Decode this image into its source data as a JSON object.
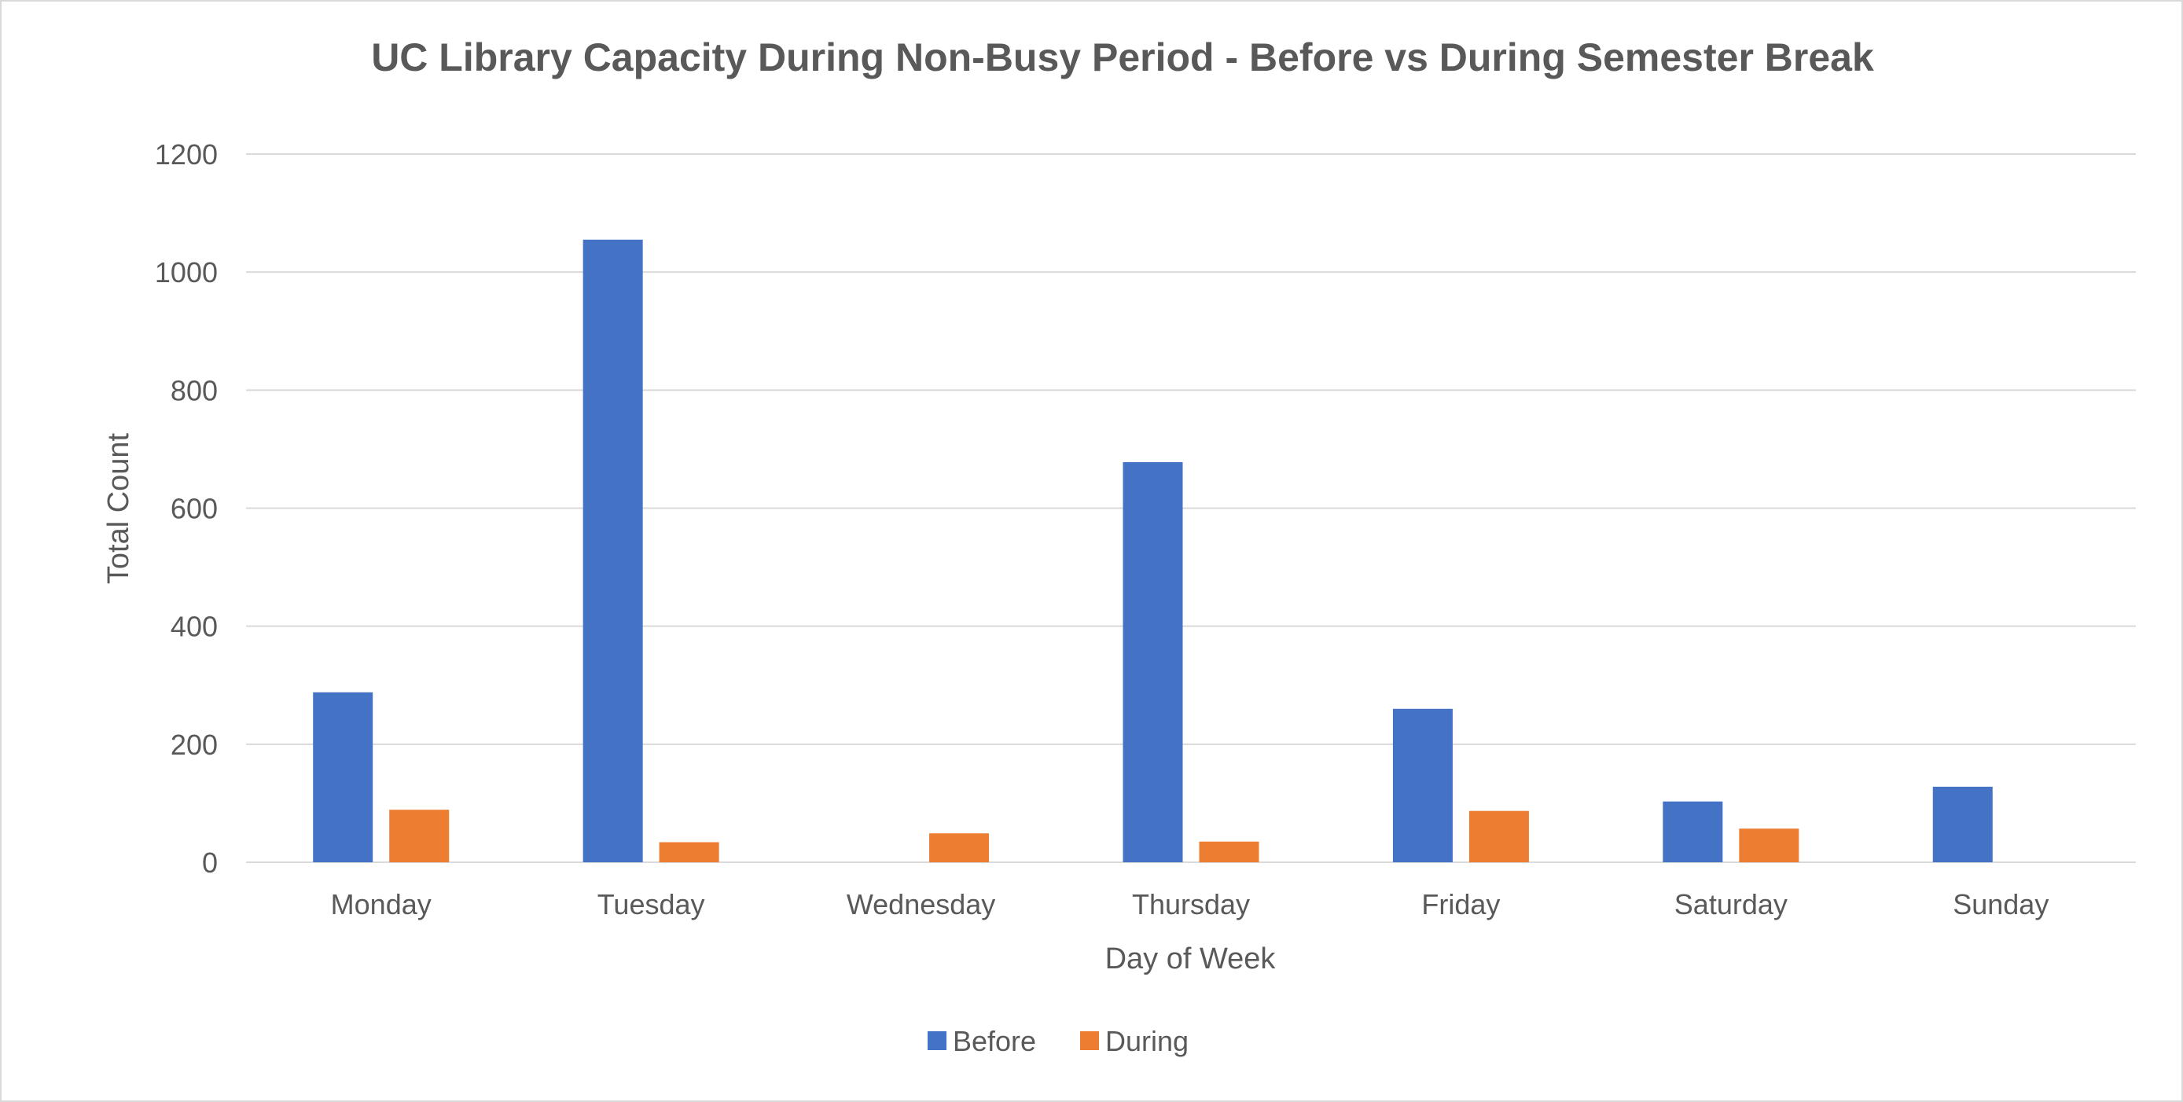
{
  "chart_data": {
    "type": "bar",
    "title": "UC Library Capacity During Non-Busy Period - Before vs During Semester Break",
    "xlabel": "Day of Week",
    "ylabel": "Total Count",
    "ylim": [
      0,
      1200
    ],
    "yticks": [
      "0",
      "200",
      "400",
      "600",
      "800",
      "1000",
      "1200"
    ],
    "grid": true,
    "legend_position": "bottom",
    "categories": [
      "Monday",
      "Tuesday",
      "Wednesday",
      "Thursday",
      "Friday",
      "Saturday",
      "Sunday"
    ],
    "series": [
      {
        "name": "Before",
        "color": "#4472c4",
        "values": [
          288,
          1055,
          0,
          678,
          260,
          103,
          128
        ]
      },
      {
        "name": "During",
        "color": "#ed7d31",
        "values": [
          89,
          34,
          49,
          35,
          87,
          57,
          0
        ]
      }
    ]
  }
}
